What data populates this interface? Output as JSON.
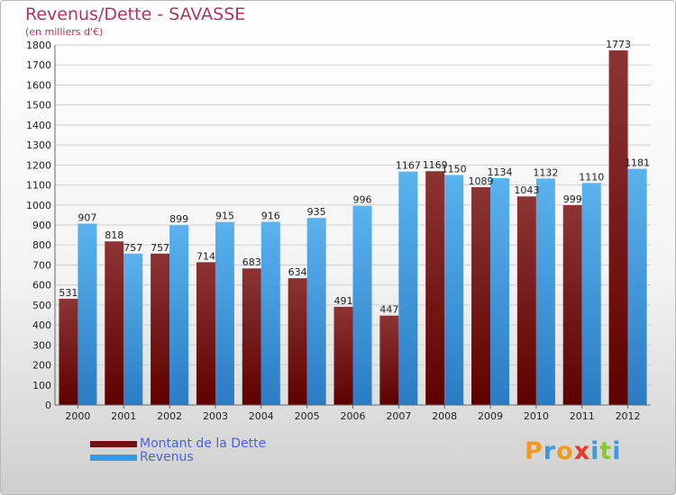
{
  "chart_data": {
    "type": "bar",
    "title": "Revenus/Dette - SAVASSE",
    "subtitle": "(en milliers d'€)",
    "categories": [
      "2000",
      "2001",
      "2002",
      "2003",
      "2004",
      "2005",
      "2006",
      "2007",
      "2008",
      "2009",
      "2010",
      "2011",
      "2012"
    ],
    "series": [
      {
        "name": "Montant de la Dette",
        "color": "#6e1212",
        "values": [
          531,
          818,
          757,
          714,
          683,
          634,
          491,
          447,
          1169,
          1089,
          1043,
          999,
          1773
        ]
      },
      {
        "name": "Revenus",
        "color": "#3a9ae0",
        "values": [
          907,
          757,
          899,
          915,
          916,
          935,
          996,
          1167,
          1150,
          1134,
          1132,
          1110,
          1181
        ]
      }
    ],
    "ylim": [
      0,
      1800
    ],
    "yticks": [
      0,
      100,
      200,
      300,
      400,
      500,
      600,
      700,
      800,
      900,
      1000,
      1100,
      1200,
      1300,
      1400,
      1500,
      1600,
      1700,
      1800
    ],
    "grid": true,
    "legend": "bottom-left"
  },
  "logo": {
    "text": "Proxiti",
    "letters": [
      {
        "ch": "P",
        "color": "#f29a1e"
      },
      {
        "ch": "r",
        "color": "#3a9ae0"
      },
      {
        "ch": "o",
        "color": "#f29a1e"
      },
      {
        "ch": "x",
        "color": "#e8392b"
      },
      {
        "ch": "i",
        "color": "#3a9ae0"
      },
      {
        "ch": "t",
        "color": "#8cc63f"
      },
      {
        "ch": "i",
        "color": "#3a9ae0"
      }
    ]
  }
}
